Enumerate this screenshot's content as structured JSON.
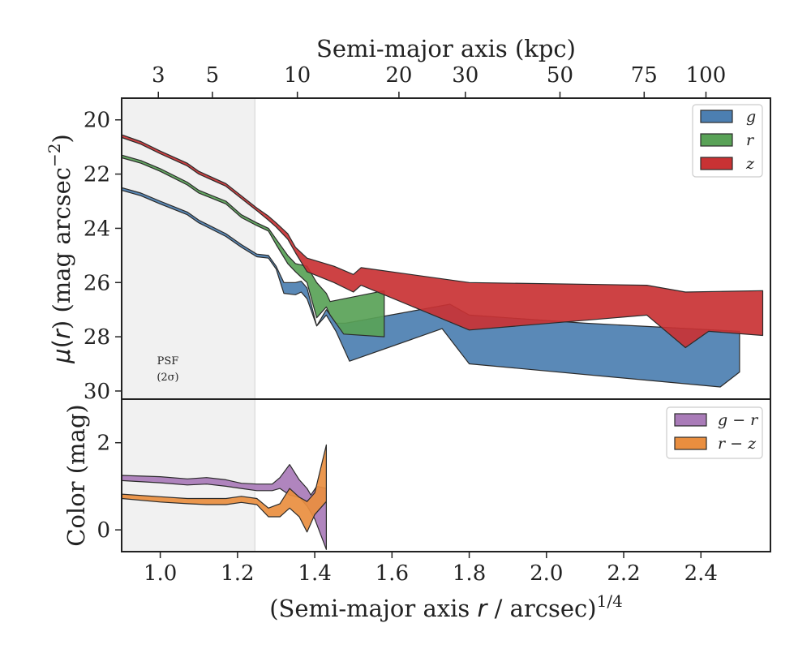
{
  "chart_data": [
    {
      "type": "area",
      "panel": "surface-brightness",
      "xlabel_parts": [
        "(Semi-major axis ",
        "r",
        " / arcsec)",
        "1/4"
      ],
      "top_xlabel": "Semi-major axis (kpc)",
      "ylabel_parts": [
        "μ",
        "(",
        "r",
        ") (mag arcsec",
        "−2",
        ")"
      ],
      "xlim": [
        0.9,
        2.58
      ],
      "ylim": [
        30.3,
        19.2
      ],
      "y_inverted": true,
      "yticks": [
        20,
        22,
        24,
        26,
        28,
        30
      ],
      "top_ticks": [
        {
          "kpc": "3",
          "x": 0.995
        },
        {
          "kpc": "5",
          "x": 1.135
        },
        {
          "kpc": "10",
          "x": 1.355
        },
        {
          "kpc": "20",
          "x": 1.618
        },
        {
          "kpc": "30",
          "x": 1.79
        },
        {
          "kpc": "50",
          "x": 2.035
        },
        {
          "kpc": "75",
          "x": 2.253
        },
        {
          "kpc": "100",
          "x": 2.413
        }
      ],
      "psf_label": [
        "PSF",
        "(2σ)"
      ],
      "psf_x": 1.245,
      "grid": false,
      "legend": "top-right",
      "series": [
        {
          "name": "g",
          "color": "#4c7fb1",
          "upper": [
            [
              0.9,
              22.5
            ],
            [
              0.95,
              22.7
            ],
            [
              1.0,
              23.0
            ],
            [
              1.07,
              23.4
            ],
            [
              1.1,
              23.7
            ],
            [
              1.17,
              24.2
            ],
            [
              1.21,
              24.6
            ],
            [
              1.25,
              24.95
            ],
            [
              1.28,
              25.0
            ],
            [
              1.3,
              25.4
            ],
            [
              1.32,
              26.0
            ],
            [
              1.35,
              26.0
            ],
            [
              1.365,
              25.95
            ],
            [
              1.38,
              26.2
            ],
            [
              1.405,
              27.6
            ],
            [
              1.43,
              27.0
            ],
            [
              1.455,
              27.5
            ],
            [
              1.48,
              27.5
            ],
            [
              1.75,
              26.8
            ],
            [
              1.8,
              27.2
            ],
            [
              2.1,
              27.5
            ],
            [
              2.5,
              27.8
            ]
          ],
          "lower": [
            [
              0.9,
              22.6
            ],
            [
              0.95,
              22.8
            ],
            [
              1.0,
              23.1
            ],
            [
              1.07,
              23.5
            ],
            [
              1.1,
              23.8
            ],
            [
              1.17,
              24.3
            ],
            [
              1.21,
              24.7
            ],
            [
              1.25,
              25.05
            ],
            [
              1.28,
              25.1
            ],
            [
              1.3,
              25.5
            ],
            [
              1.32,
              26.4
            ],
            [
              1.35,
              26.45
            ],
            [
              1.365,
              26.35
            ],
            [
              1.38,
              26.6
            ],
            [
              1.405,
              27.6
            ],
            [
              1.43,
              27.2
            ],
            [
              1.455,
              27.8
            ],
            [
              1.49,
              28.9
            ],
            [
              1.73,
              27.7
            ],
            [
              1.8,
              29.0
            ],
            [
              2.45,
              29.85
            ],
            [
              2.5,
              29.3
            ]
          ]
        },
        {
          "name": "r",
          "color": "#59a257",
          "upper": [
            [
              0.9,
              21.3
            ],
            [
              0.95,
              21.5
            ],
            [
              1.0,
              21.8
            ],
            [
              1.07,
              22.3
            ],
            [
              1.1,
              22.6
            ],
            [
              1.17,
              23.0
            ],
            [
              1.21,
              23.5
            ],
            [
              1.25,
              23.8
            ],
            [
              1.28,
              24.0
            ],
            [
              1.3,
              24.4
            ],
            [
              1.33,
              25.0
            ],
            [
              1.35,
              25.3
            ],
            [
              1.38,
              25.4
            ],
            [
              1.405,
              26.0
            ],
            [
              1.43,
              26.4
            ],
            [
              1.44,
              26.7
            ],
            [
              1.58,
              26.3
            ]
          ],
          "lower": [
            [
              0.9,
              21.4
            ],
            [
              0.95,
              21.6
            ],
            [
              1.0,
              21.9
            ],
            [
              1.07,
              22.4
            ],
            [
              1.1,
              22.7
            ],
            [
              1.17,
              23.1
            ],
            [
              1.21,
              23.6
            ],
            [
              1.25,
              23.9
            ],
            [
              1.28,
              24.1
            ],
            [
              1.3,
              24.6
            ],
            [
              1.33,
              25.3
            ],
            [
              1.35,
              25.6
            ],
            [
              1.38,
              26.0
            ],
            [
              1.405,
              27.3
            ],
            [
              1.43,
              26.9
            ],
            [
              1.44,
              27.2
            ],
            [
              1.475,
              27.9
            ],
            [
              1.58,
              28.0
            ]
          ]
        },
        {
          "name": "z",
          "color": "#c93234",
          "upper": [
            [
              0.9,
              20.55
            ],
            [
              0.95,
              20.8
            ],
            [
              1.0,
              21.15
            ],
            [
              1.07,
              21.6
            ],
            [
              1.1,
              21.9
            ],
            [
              1.17,
              22.35
            ],
            [
              1.21,
              22.8
            ],
            [
              1.25,
              23.25
            ],
            [
              1.28,
              23.55
            ],
            [
              1.3,
              23.8
            ],
            [
              1.33,
              24.2
            ],
            [
              1.35,
              24.7
            ],
            [
              1.38,
              25.1
            ],
            [
              1.45,
              25.4
            ],
            [
              1.5,
              25.7
            ],
            [
              1.52,
              25.45
            ],
            [
              1.8,
              26.0
            ],
            [
              2.26,
              26.1
            ],
            [
              2.36,
              26.35
            ],
            [
              2.56,
              26.3
            ]
          ],
          "lower": [
            [
              0.9,
              20.65
            ],
            [
              0.95,
              20.9
            ],
            [
              1.0,
              21.25
            ],
            [
              1.07,
              21.7
            ],
            [
              1.1,
              22.0
            ],
            [
              1.17,
              22.45
            ],
            [
              1.21,
              22.9
            ],
            [
              1.25,
              23.35
            ],
            [
              1.28,
              23.7
            ],
            [
              1.3,
              23.95
            ],
            [
              1.33,
              24.4
            ],
            [
              1.35,
              24.9
            ],
            [
              1.38,
              25.6
            ],
            [
              1.45,
              26.0
            ],
            [
              1.5,
              26.35
            ],
            [
              1.52,
              26.1
            ],
            [
              1.8,
              27.75
            ],
            [
              2.26,
              27.2
            ],
            [
              2.36,
              28.4
            ],
            [
              2.42,
              27.8
            ],
            [
              2.56,
              27.95
            ]
          ]
        }
      ]
    },
    {
      "type": "area",
      "panel": "color",
      "ylabel": "Color (mag)",
      "xlim": [
        0.9,
        2.58
      ],
      "ylim": [
        -0.5,
        3.0
      ],
      "yticks": [
        0,
        2
      ],
      "xticks": [
        "1.0",
        "1.2",
        "1.4",
        "1.6",
        "1.8",
        "2.0",
        "2.2",
        "2.4"
      ],
      "legend": "top-right",
      "series": [
        {
          "name_parts": [
            "g",
            " − ",
            "r"
          ],
          "color": "#a97bb8",
          "upper": [
            [
              0.9,
              1.25
            ],
            [
              1.0,
              1.22
            ],
            [
              1.07,
              1.17
            ],
            [
              1.12,
              1.2
            ],
            [
              1.17,
              1.15
            ],
            [
              1.21,
              1.07
            ],
            [
              1.25,
              1.05
            ],
            [
              1.29,
              1.05
            ],
            [
              1.31,
              1.2
            ],
            [
              1.335,
              1.5
            ],
            [
              1.36,
              1.15
            ],
            [
              1.38,
              0.95
            ],
            [
              1.39,
              0.8
            ],
            [
              1.405,
              1.0
            ],
            [
              1.43,
              0.95
            ]
          ],
          "lower": [
            [
              0.9,
              1.13
            ],
            [
              1.0,
              1.08
            ],
            [
              1.07,
              1.03
            ],
            [
              1.12,
              1.05
            ],
            [
              1.17,
              1.0
            ],
            [
              1.21,
              0.95
            ],
            [
              1.25,
              0.9
            ],
            [
              1.29,
              0.9
            ],
            [
              1.31,
              0.95
            ],
            [
              1.335,
              0.8
            ],
            [
              1.36,
              0.75
            ],
            [
              1.38,
              0.55
            ],
            [
              1.4,
              0.25
            ],
            [
              1.43,
              -0.45
            ]
          ]
        },
        {
          "name_parts": [
            "r",
            " − ",
            "z"
          ],
          "color": "#e98e3f",
          "upper": [
            [
              0.9,
              0.82
            ],
            [
              1.0,
              0.76
            ],
            [
              1.07,
              0.72
            ],
            [
              1.12,
              0.72
            ],
            [
              1.17,
              0.72
            ],
            [
              1.21,
              0.77
            ],
            [
              1.25,
              0.72
            ],
            [
              1.28,
              0.5
            ],
            [
              1.31,
              0.6
            ],
            [
              1.335,
              0.95
            ],
            [
              1.36,
              0.75
            ],
            [
              1.38,
              0.65
            ],
            [
              1.4,
              0.85
            ],
            [
              1.43,
              1.95
            ]
          ],
          "lower": [
            [
              0.9,
              0.72
            ],
            [
              1.0,
              0.64
            ],
            [
              1.07,
              0.6
            ],
            [
              1.12,
              0.58
            ],
            [
              1.17,
              0.58
            ],
            [
              1.21,
              0.63
            ],
            [
              1.25,
              0.58
            ],
            [
              1.28,
              0.3
            ],
            [
              1.31,
              0.3
            ],
            [
              1.335,
              0.5
            ],
            [
              1.36,
              0.3
            ],
            [
              1.38,
              -0.05
            ],
            [
              1.4,
              0.35
            ],
            [
              1.43,
              0.65
            ]
          ]
        }
      ]
    }
  ]
}
